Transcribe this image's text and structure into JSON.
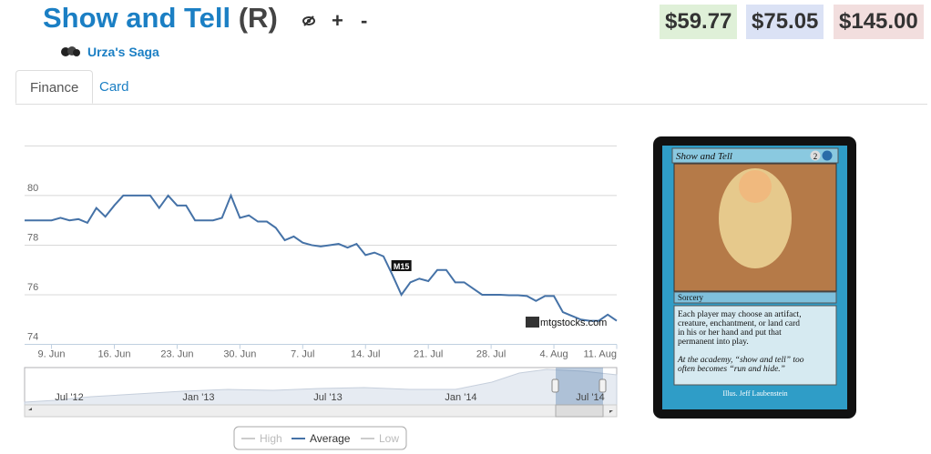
{
  "header": {
    "title": "Show and Tell",
    "rarity": "(R)",
    "actions": [
      "+",
      "-"
    ],
    "set": "Urza's Saga",
    "prices": [
      {
        "text": "$59.77",
        "color": "#dff0d8"
      },
      {
        "text": "$75.05",
        "color": "#dbe2f5"
      },
      {
        "text": "$145.00",
        "color": "#f2dede"
      }
    ]
  },
  "tabs": [
    "Finance",
    "Card"
  ],
  "card": {
    "name": "Show and Tell",
    "cost": "2",
    "type": "Sorcery",
    "text": [
      "Each player may choose an artifact,",
      "creature, enchantment, or land card",
      "in his or her hand and put that",
      "permanent into play."
    ],
    "flavor": [
      "At the academy, “show and tell” too",
      "often becomes “run and hide.”"
    ],
    "artist": "Illus. Jeff Laubenstein"
  },
  "chart_data": {
    "type": "line",
    "categories": [
      null,
      null,
      null,
      "9. Jun",
      null,
      null,
      null,
      null,
      null,
      null,
      "16. Jun",
      null,
      null,
      null,
      null,
      null,
      null,
      "23. Jun",
      null,
      null,
      null,
      null,
      null,
      null,
      "30. Jun",
      null,
      null,
      null,
      null,
      null,
      null,
      "7. Jul",
      null,
      null,
      null,
      null,
      null,
      null,
      "14. Jul",
      null,
      null,
      null,
      null,
      null,
      null,
      "21. Jul",
      null,
      null,
      null,
      null,
      null,
      null,
      "28. Jul",
      null,
      null,
      null,
      null,
      null,
      null,
      "4. Aug",
      null,
      null,
      null,
      null,
      null,
      null,
      "11. Aug"
    ],
    "series": [
      {
        "name": "Average",
        "color": "#4572a7",
        "values": [
          79.0,
          79.0,
          79.0,
          79.0,
          79.1,
          79.0,
          79.05,
          78.9,
          79.5,
          79.15,
          79.6,
          80.0,
          80.0,
          80.0,
          80.0,
          79.5,
          80.0,
          79.6,
          79.6,
          79.0,
          79.0,
          79.0,
          79.1,
          80.0,
          79.1,
          79.2,
          78.95,
          78.95,
          78.7,
          78.2,
          78.35,
          78.1,
          78.0,
          77.95,
          78.0,
          78.05,
          77.9,
          78.05,
          77.6,
          77.7,
          77.55,
          76.8,
          76.0,
          76.5,
          76.65,
          76.55,
          77.0,
          77.0,
          76.5,
          76.5,
          76.25,
          76.0,
          76.0,
          76.0,
          75.98,
          75.98,
          75.95,
          75.75,
          75.95,
          75.95,
          75.3,
          75.15,
          75.0,
          74.95,
          74.95,
          75.2,
          74.95
        ]
      }
    ],
    "legend_hidden": [
      "High",
      "Low"
    ],
    "ylim": [
      74,
      82
    ],
    "yticks": [
      74,
      76,
      78,
      80
    ],
    "grid": true,
    "annotations": [
      {
        "text": "M15",
        "index": 42
      }
    ],
    "watermark": "mtgstocks.com",
    "navigator_labels": [
      "Jul '12",
      "Jan '13",
      "Jul '13",
      "Jan '14",
      "Jul '14"
    ]
  }
}
